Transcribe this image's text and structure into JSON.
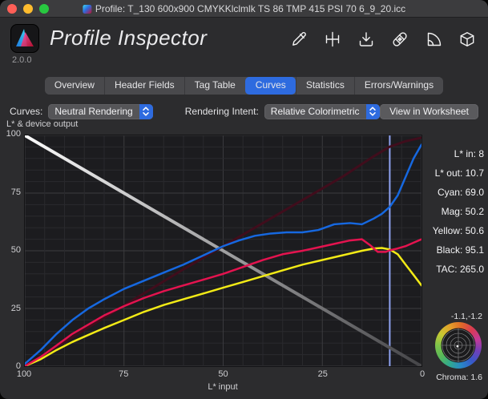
{
  "window": {
    "title": "Profile: T_130 600x900 CMYKKlclmlk TS 86 TMP 415 PSI 70 6_9_20.icc"
  },
  "header": {
    "app_title": "Profile Inspector",
    "version": "2.0.0",
    "toolbar_icons": [
      "pencil-icon",
      "registration-icon",
      "download-icon",
      "bandaid-icon",
      "ruler-icon",
      "package-icon"
    ]
  },
  "tabs": {
    "items": [
      "Overview",
      "Header Fields",
      "Tag Table",
      "Curves",
      "Statistics",
      "Errors/Warnings"
    ],
    "selected": "Curves"
  },
  "controls": {
    "curves_label": "Curves:",
    "curves_value": "Neutral Rendering",
    "intent_label": "Rendering Intent:",
    "intent_value": "Relative Colorimetric",
    "worksheet_button": "View in Worksheet"
  },
  "chart": {
    "axis_title": "L* & device output",
    "xlabel": "L* input"
  },
  "readouts": [
    {
      "label": "L* in:",
      "value": "8"
    },
    {
      "label": "L* out:",
      "value": "10.7"
    },
    {
      "label": "Cyan:",
      "value": "69.0"
    },
    {
      "label": "Mag:",
      "value": "50.2"
    },
    {
      "label": "Yellow:",
      "value": "50.6"
    },
    {
      "label": "Black:",
      "value": "95.1"
    },
    {
      "label": "TAC:",
      "value": "265.0"
    }
  ],
  "gamut": {
    "coords": "-1.1,-1.2",
    "chroma": "Chroma: 1.6"
  },
  "colors": {
    "accent": "#2e6bdf",
    "cursor": "#8fa3f2",
    "cyan_curve": "#1668e0",
    "magenta_curve": "#e4134f",
    "yellow_curve": "#f2ea16",
    "black_curve": "#400d1c"
  },
  "chart_data": {
    "type": "line",
    "title": "L* & device output",
    "xlabel": "L* input",
    "x_axis": {
      "min": 0,
      "max": 100,
      "reversed": true,
      "ticks": [
        100,
        75,
        50,
        25,
        0
      ]
    },
    "y_axis": {
      "min": 0,
      "max": 100,
      "ticks": [
        100,
        75,
        50,
        25,
        0
      ]
    },
    "grid_step": 5,
    "grid": true,
    "cursor": {
      "x": 8,
      "color": "#8fa3f2"
    },
    "series": [
      {
        "name": "neutral-reference",
        "gradient": [
          "#fbfbfb",
          "#454548"
        ],
        "width": 4,
        "points": [
          [
            100,
            100
          ],
          [
            0,
            0
          ]
        ]
      },
      {
        "name": "black",
        "color": "#400d1c",
        "width": 3,
        "points": [
          [
            100,
            0
          ],
          [
            90,
            10.5
          ],
          [
            80,
            21
          ],
          [
            70,
            31.5
          ],
          [
            60,
            42
          ],
          [
            50,
            52
          ],
          [
            40,
            62
          ],
          [
            30,
            72
          ],
          [
            20,
            82
          ],
          [
            12,
            91
          ],
          [
            8,
            95.1
          ],
          [
            4,
            97.5
          ],
          [
            0,
            99
          ]
        ]
      },
      {
        "name": "yellow",
        "color": "#f2ea16",
        "width": 2.5,
        "points": [
          [
            100,
            0
          ],
          [
            96,
            3
          ],
          [
            92,
            7
          ],
          [
            88,
            10.5
          ],
          [
            84,
            13.5
          ],
          [
            80,
            16.5
          ],
          [
            75,
            20
          ],
          [
            70,
            23.5
          ],
          [
            65,
            26.5
          ],
          [
            60,
            29
          ],
          [
            55,
            31.5
          ],
          [
            50,
            34
          ],
          [
            45,
            36.5
          ],
          [
            40,
            39
          ],
          [
            35,
            41.5
          ],
          [
            30,
            44
          ],
          [
            25,
            46
          ],
          [
            20,
            48
          ],
          [
            15,
            50
          ],
          [
            12,
            51
          ],
          [
            10,
            51.2
          ],
          [
            8,
            50.6
          ],
          [
            6,
            48.5
          ],
          [
            4,
            44
          ],
          [
            2,
            39.5
          ],
          [
            0,
            35
          ]
        ]
      },
      {
        "name": "magenta",
        "color": "#e4134f",
        "width": 2.5,
        "points": [
          [
            100,
            0
          ],
          [
            96,
            4
          ],
          [
            92,
            9
          ],
          [
            88,
            14
          ],
          [
            84,
            18
          ],
          [
            80,
            22
          ],
          [
            75,
            26
          ],
          [
            70,
            29.5
          ],
          [
            65,
            32.5
          ],
          [
            60,
            35
          ],
          [
            55,
            37.5
          ],
          [
            50,
            40
          ],
          [
            45,
            43
          ],
          [
            40,
            46
          ],
          [
            35,
            48.5
          ],
          [
            30,
            50
          ],
          [
            26,
            51.5
          ],
          [
            22,
            53
          ],
          [
            18,
            54.5
          ],
          [
            15,
            55
          ],
          [
            13,
            52.5
          ],
          [
            11,
            49.5
          ],
          [
            9,
            49.5
          ],
          [
            8,
            50.2
          ],
          [
            6,
            51
          ],
          [
            4,
            52
          ],
          [
            2,
            53.5
          ],
          [
            0,
            55
          ]
        ]
      },
      {
        "name": "cyan",
        "color": "#1668e0",
        "width": 2.5,
        "points": [
          [
            100,
            1
          ],
          [
            96,
            7
          ],
          [
            92,
            14
          ],
          [
            88,
            20
          ],
          [
            84,
            25
          ],
          [
            80,
            29
          ],
          [
            75,
            33.5
          ],
          [
            70,
            37
          ],
          [
            65,
            40.5
          ],
          [
            60,
            44
          ],
          [
            55,
            48
          ],
          [
            50,
            52
          ],
          [
            46,
            54.5
          ],
          [
            42,
            56.5
          ],
          [
            38,
            57.5
          ],
          [
            34,
            58
          ],
          [
            30,
            58
          ],
          [
            26,
            59
          ],
          [
            22,
            61.5
          ],
          [
            18,
            62
          ],
          [
            15,
            61.5
          ],
          [
            12,
            64
          ],
          [
            10,
            66
          ],
          [
            8,
            69
          ],
          [
            6,
            74
          ],
          [
            4,
            82
          ],
          [
            2,
            90
          ],
          [
            0,
            96
          ]
        ]
      }
    ],
    "readout_at_cursor": {
      "L_in": 8,
      "L_out": 10.7,
      "Cyan": 69.0,
      "Mag": 50.2,
      "Yellow": 50.6,
      "Black": 95.1,
      "TAC": 265.0
    }
  }
}
